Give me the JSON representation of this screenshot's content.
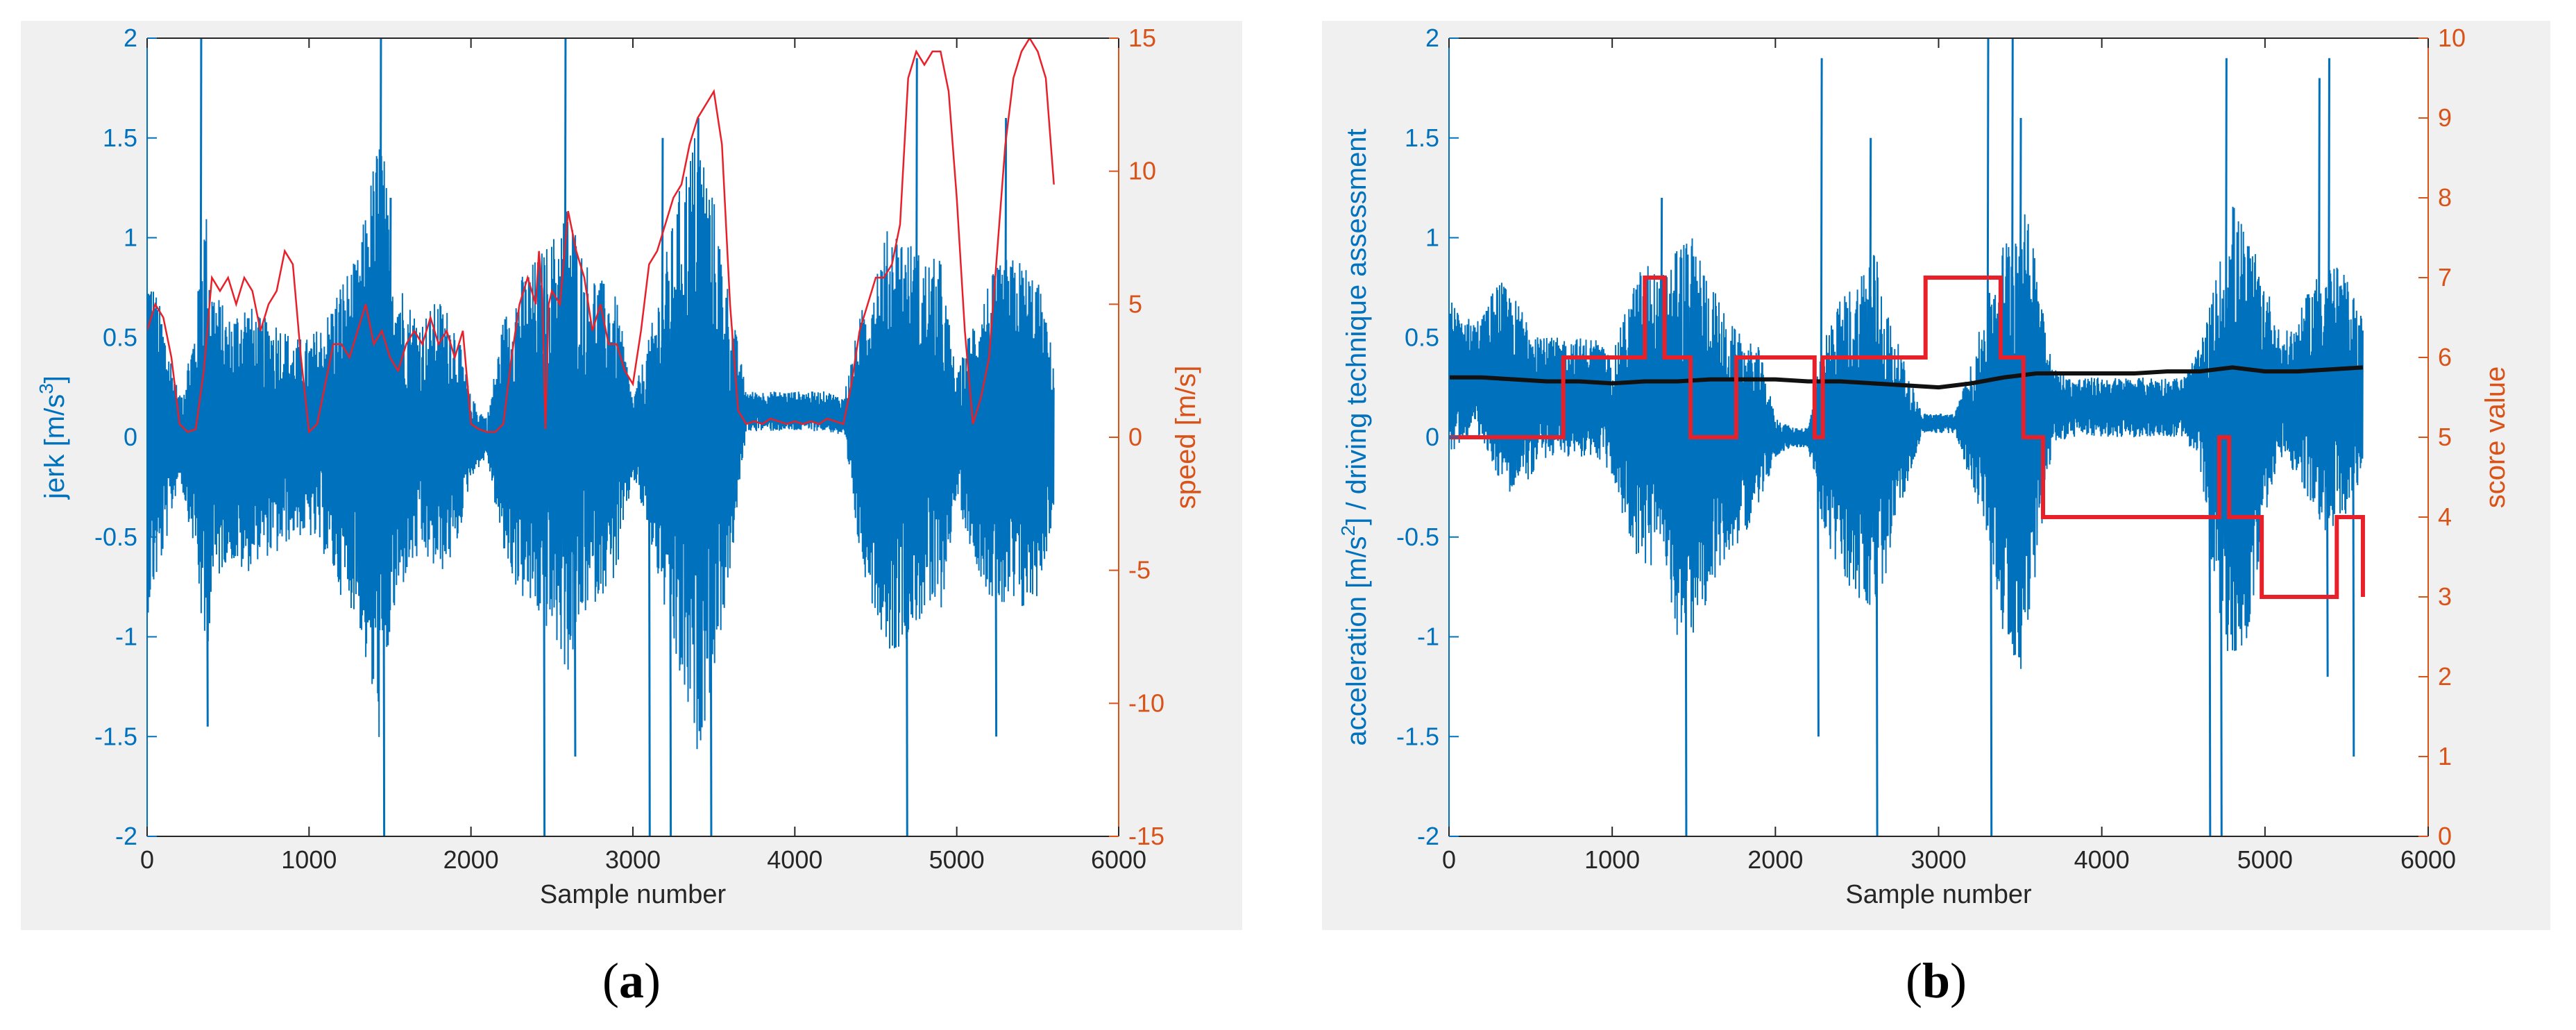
{
  "colors": {
    "blue": "#0072bd",
    "orange": "#d95319",
    "red": "#e8202a",
    "black": "#111111",
    "grid_bg": "#ffffff",
    "panel_bg": "#f0f0f0",
    "axis": "#262626"
  },
  "captions": [
    {
      "open": "(",
      "letter": "a",
      "close": ")"
    },
    {
      "open": "(",
      "letter": "b",
      "close": ")"
    }
  ],
  "chart_data": [
    {
      "type": "line",
      "panel": "a",
      "xlabel": "Sample number",
      "ylabel_left": "jerk [m/s³]",
      "ylabel_left_base": "jerk [m/s",
      "ylabel_left_sup": "3",
      "ylabel_left_end": "]",
      "ylabel_right": "speed [m/s]",
      "xlim": [
        0,
        6000
      ],
      "ylim_left": [
        -2,
        2
      ],
      "ylim_right": [
        -15,
        15
      ],
      "xticks": [
        0,
        1000,
        2000,
        3000,
        4000,
        5000,
        6000
      ],
      "yticks_left": [
        -2,
        -1.5,
        -1,
        -0.5,
        0,
        0.5,
        1,
        1.5,
        2
      ],
      "yticks_left_labels": [
        "-2",
        "-1.5",
        "-1",
        "-0.5",
        "0",
        "0.5",
        "1",
        "1.5",
        "2"
      ],
      "yticks_right": [
        -15,
        -10,
        -5,
        0,
        5,
        10,
        15
      ],
      "yticks_right_labels": [
        "-15",
        "-10",
        "-5",
        "0",
        "5",
        "10",
        "15"
      ],
      "series": [
        {
          "name": "jerk",
          "axis": "left",
          "color": "#0072bd",
          "style": "dense-noise",
          "envelope": {
            "x": [
              0,
              100,
              200,
              300,
              360,
              400,
              500,
              600,
              700,
              800,
              900,
              1000,
              1100,
              1200,
              1300,
              1400,
              1450,
              1500,
              1600,
              1700,
              1800,
              1900,
              2000,
              2100,
              2200,
              2300,
              2400,
              2500,
              2600,
              2700,
              2800,
              2900,
              3000,
              3100,
              3200,
              3300,
              3400,
              3500,
              3600,
              3700,
              3800,
              3900,
              4000,
              4100,
              4200,
              4300,
              4400,
              4500,
              4600,
              4700,
              4800,
              4900,
              5000,
              5100,
              5200,
              5300,
              5400,
              5500,
              5600
            ],
            "amp": [
              0.9,
              0.6,
              0.2,
              0.6,
              1.2,
              0.8,
              0.6,
              0.7,
              0.6,
              0.6,
              0.5,
              0.5,
              0.6,
              0.8,
              0.9,
              1.4,
              1.6,
              1.0,
              0.7,
              0.6,
              0.7,
              0.6,
              0.2,
              0.1,
              0.6,
              0.8,
              0.9,
              1.0,
              1.2,
              0.9,
              0.8,
              0.7,
              0.2,
              0.5,
              0.9,
              1.3,
              1.6,
              1.2,
              0.7,
              0.1,
              0.1,
              0.1,
              0.1,
              0.1,
              0.1,
              0.1,
              0.6,
              0.9,
              1.1,
              1.0,
              0.9,
              0.9,
              0.3,
              0.6,
              0.8,
              0.9,
              0.9,
              0.8,
              0.4
            ],
            "offset": [
              0,
              0,
              0,
              0,
              0,
              0,
              0,
              0,
              0,
              0,
              0,
              0,
              0,
              0,
              0,
              0,
              0,
              0,
              0,
              0,
              0,
              0,
              0,
              0,
              0,
              0,
              0,
              0,
              0,
              0,
              0,
              0,
              0,
              0,
              0,
              0,
              0,
              0,
              0,
              0.13,
              0.13,
              0.13,
              0.13,
              0.13,
              0.13,
              0.1,
              0,
              0,
              0,
              0,
              0,
              0,
              0,
              0,
              0,
              0,
              0,
              0,
              0
            ]
          },
          "spikes": [
            [
              330,
              2.0
            ],
            [
              370,
              -1.45
            ],
            [
              1440,
              2.0
            ],
            [
              1460,
              -2.0
            ],
            [
              1500,
              1.2
            ],
            [
              2580,
              2.0
            ],
            [
              2640,
              -1.6
            ],
            [
              2450,
              -2.0
            ],
            [
              3100,
              -2.0
            ],
            [
              3180,
              1.5
            ],
            [
              3230,
              -2.0
            ],
            [
              3480,
              -2.0
            ],
            [
              3400,
              1.6
            ],
            [
              4690,
              -2.0
            ],
            [
              4750,
              1.9
            ],
            [
              5300,
              1.6
            ],
            [
              5240,
              -1.5
            ]
          ]
        },
        {
          "name": "speed",
          "axis": "right",
          "color": "#e8202a",
          "x": [
            0,
            50,
            100,
            150,
            200,
            250,
            300,
            350,
            400,
            450,
            500,
            550,
            600,
            650,
            700,
            750,
            800,
            850,
            900,
            950,
            1000,
            1050,
            1100,
            1150,
            1200,
            1250,
            1300,
            1350,
            1400,
            1450,
            1500,
            1550,
            1600,
            1650,
            1700,
            1750,
            1800,
            1850,
            1900,
            1950,
            2000,
            2050,
            2100,
            2150,
            2200,
            2250,
            2300,
            2350,
            2400,
            2420,
            2440,
            2460,
            2480,
            2500,
            2550,
            2600,
            2650,
            2700,
            2750,
            2800,
            2850,
            2900,
            2950,
            3000,
            3050,
            3100,
            3150,
            3200,
            3250,
            3300,
            3350,
            3400,
            3450,
            3500,
            3550,
            3600,
            3650,
            3700,
            3750,
            3800,
            3850,
            3900,
            3950,
            4000,
            4050,
            4100,
            4150,
            4200,
            4250,
            4300,
            4350,
            4400,
            4450,
            4500,
            4550,
            4600,
            4650,
            4700,
            4750,
            4800,
            4850,
            4900,
            4950,
            5000,
            5050,
            5100,
            5150,
            5200,
            5250,
            5300,
            5350,
            5400,
            5450,
            5500,
            5550,
            5600
          ],
          "y": [
            4.0,
            5.0,
            4.5,
            3.0,
            0.5,
            0.2,
            0.3,
            2.5,
            6.0,
            5.5,
            6.0,
            5.0,
            6.0,
            5.5,
            4.0,
            5.0,
            5.5,
            7.0,
            6.5,
            3.0,
            0.2,
            0.5,
            2.0,
            3.5,
            3.5,
            3.0,
            4.0,
            5.0,
            3.5,
            4.0,
            3.0,
            2.5,
            3.5,
            4.0,
            3.5,
            4.5,
            3.5,
            4.0,
            3.0,
            4.0,
            0.5,
            0.3,
            0.2,
            0.2,
            0.5,
            3.0,
            5.0,
            6.0,
            5.0,
            7.0,
            5.5,
            0.3,
            5.0,
            5.5,
            5.0,
            8.5,
            7.0,
            6.0,
            4.0,
            5.0,
            3.5,
            3.5,
            2.5,
            2.0,
            4.0,
            6.5,
            7.0,
            8.0,
            9.0,
            9.5,
            11.0,
            12.0,
            12.5,
            13.0,
            11.0,
            5.0,
            1.0,
            0.5,
            0.6,
            0.5,
            0.7,
            0.6,
            0.5,
            0.6,
            0.5,
            0.6,
            0.5,
            0.7,
            0.6,
            0.5,
            2.0,
            4.0,
            5.0,
            6.0,
            6.0,
            6.5,
            8.0,
            13.5,
            14.5,
            14.0,
            14.5,
            14.5,
            13.0,
            9.0,
            4.0,
            0.5,
            1.5,
            3.0,
            7.0,
            11.0,
            13.5,
            14.5,
            15.0,
            14.5,
            13.5,
            9.5
          ]
        }
      ]
    },
    {
      "type": "line",
      "panel": "b",
      "xlabel": "Sample number",
      "ylabel_left": "acceleration [m/s²] / driving technique assessment",
      "ylabel_left_base": "acceleration [m/s",
      "ylabel_left_sup": "2",
      "ylabel_left_end": "] / driving technique assessment",
      "ylabel_right": "score value",
      "xlim": [
        0,
        6000
      ],
      "ylim_left": [
        -2,
        2
      ],
      "ylim_right": [
        0,
        10
      ],
      "xticks": [
        0,
        1000,
        2000,
        3000,
        4000,
        5000,
        6000
      ],
      "yticks_left": [
        -2,
        -1.5,
        -1,
        -0.5,
        0,
        0.5,
        1,
        1.5,
        2
      ],
      "yticks_left_labels": [
        "-2",
        "-1.5",
        "-1",
        "-0.5",
        "0",
        "0.5",
        "1",
        "1.5",
        "2"
      ],
      "yticks_right": [
        0,
        1,
        2,
        3,
        4,
        5,
        6,
        7,
        8,
        9,
        10
      ],
      "yticks_right_labels": [
        "0",
        "1",
        "2",
        "3",
        "4",
        "5",
        "6",
        "7",
        "8",
        "9",
        "10"
      ],
      "series": [
        {
          "name": "acceleration",
          "axis": "left",
          "color": "#0072bd",
          "style": "dense-noise",
          "envelope": {
            "x": [
              0,
              100,
              200,
              300,
              400,
              500,
              600,
              700,
              800,
              900,
              1000,
              1100,
              1200,
              1300,
              1400,
              1500,
              1600,
              1700,
              1800,
              1900,
              2000,
              2100,
              2200,
              2300,
              2400,
              2500,
              2600,
              2700,
              2800,
              2900,
              3000,
              3100,
              3200,
              3300,
              3400,
              3500,
              3600,
              3700,
              3800,
              3900,
              4000,
              4100,
              4200,
              4300,
              4400,
              4500,
              4600,
              4700,
              4800,
              4900,
              5000,
              5100,
              5200,
              5300,
              5400,
              5500,
              5600
            ],
            "amp": [
              0.4,
              0.3,
              0.3,
              0.5,
              0.5,
              0.4,
              0.3,
              0.3,
              0.3,
              0.3,
              0.3,
              0.6,
              0.8,
              0.7,
              1.0,
              1.0,
              0.8,
              0.6,
              0.5,
              0.4,
              0.1,
              0.05,
              0.05,
              0.5,
              0.7,
              0.8,
              1.0,
              0.6,
              0.3,
              0.05,
              0.05,
              0.05,
              0.3,
              0.6,
              1.0,
              1.2,
              0.8,
              0.2,
              0.15,
              0.15,
              0.15,
              0.15,
              0.15,
              0.15,
              0.15,
              0.15,
              0.3,
              0.8,
              1.2,
              1.0,
              0.6,
              0.3,
              0.4,
              0.6,
              0.7,
              0.6,
              0.4
            ],
            "offset": [
              0.3,
              0.3,
              0.3,
              0.3,
              0.2,
              0.2,
              0.2,
              0.2,
              0.2,
              0.2,
              0.1,
              0.1,
              0.1,
              0.1,
              0,
              0,
              0,
              0,
              0,
              0.05,
              0,
              0,
              0,
              0,
              0,
              0,
              0,
              0,
              0.05,
              0.07,
              0.07,
              0.07,
              0.07,
              0.1,
              0,
              0,
              0.15,
              0.15,
              0.15,
              0.15,
              0.15,
              0.15,
              0.15,
              0.15,
              0.15,
              0.15,
              0.15,
              0,
              0,
              0,
              0.2,
              0.2,
              0.2,
              0.2,
              0.2,
              0.2,
              0.2
            ]
          },
          "spikes": [
            [
              2280,
              1.9
            ],
            [
              2260,
              -1.5
            ],
            [
              2580,
              1.5
            ],
            [
              2620,
              -2.0
            ],
            [
              3300,
              2.0
            ],
            [
              3320,
              -2.0
            ],
            [
              3450,
              2.0
            ],
            [
              3500,
              1.6
            ],
            [
              1450,
              -2.0
            ],
            [
              1300,
              1.2
            ],
            [
              4730,
              -2.0
            ],
            [
              4760,
              1.9
            ],
            [
              5330,
              1.8
            ],
            [
              5390,
              1.9
            ],
            [
              5380,
              -1.2
            ],
            [
              5540,
              -1.6
            ],
            [
              4660,
              -2.0
            ]
          ]
        },
        {
          "name": "driving technique assessment",
          "axis": "left",
          "color": "#111111",
          "x": [
            0,
            200,
            400,
            600,
            800,
            1000,
            1200,
            1400,
            1600,
            1800,
            2000,
            2200,
            2400,
            2600,
            2800,
            3000,
            3200,
            3400,
            3600,
            3800,
            4000,
            4200,
            4400,
            4600,
            4800,
            5000,
            5200,
            5400,
            5600
          ],
          "y": [
            0.3,
            0.3,
            0.29,
            0.28,
            0.28,
            0.27,
            0.28,
            0.28,
            0.29,
            0.29,
            0.29,
            0.28,
            0.28,
            0.27,
            0.26,
            0.25,
            0.27,
            0.3,
            0.32,
            0.32,
            0.32,
            0.32,
            0.33,
            0.33,
            0.35,
            0.33,
            0.33,
            0.34,
            0.35
          ]
        },
        {
          "name": "score value",
          "axis": "right",
          "color": "#e8202a",
          "step": true,
          "x": [
            0,
            700,
            1200,
            1320,
            1480,
            1760,
            2240,
            2290,
            2920,
            3380,
            3520,
            3640,
            4720,
            4780,
            4980,
            5440,
            5600
          ],
          "y": [
            5,
            6,
            7,
            6,
            5,
            6,
            5,
            6,
            7,
            6,
            5,
            4,
            5,
            4,
            3,
            4,
            3
          ]
        }
      ]
    }
  ]
}
